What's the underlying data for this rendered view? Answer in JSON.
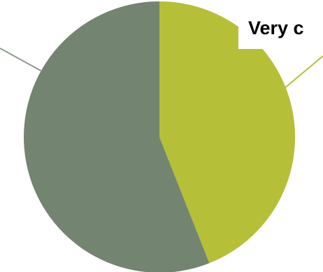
{
  "chart_data": {
    "type": "pie",
    "title": "",
    "slices": [
      {
        "label": "Very c",
        "value": 44,
        "color": "#b5bf38"
      },
      {
        "label": "",
        "value": 56,
        "color": "#738470"
      }
    ],
    "start_angle_deg": 0,
    "direction": "clockwise",
    "legend": "none"
  }
}
